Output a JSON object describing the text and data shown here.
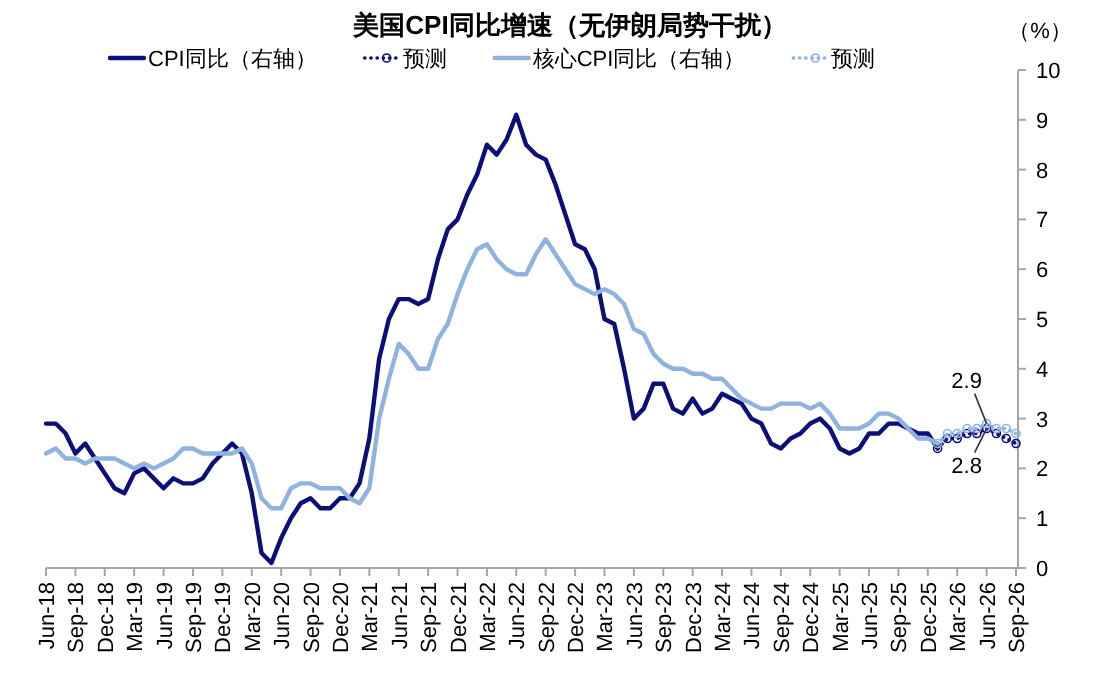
{
  "chart_data": {
    "type": "line",
    "title": "美国CPI同比增速（无伊朗局势干扰）",
    "ylabel": "（%）",
    "x": [
      "2018-06",
      "2018-07",
      "2018-08",
      "2018-09",
      "2018-10",
      "2018-11",
      "2018-12",
      "2019-01",
      "2019-02",
      "2019-03",
      "2019-04",
      "2019-05",
      "2019-06",
      "2019-07",
      "2019-08",
      "2019-09",
      "2019-10",
      "2019-11",
      "2019-12",
      "2020-01",
      "2020-02",
      "2020-03",
      "2020-04",
      "2020-05",
      "2020-06",
      "2020-07",
      "2020-08",
      "2020-09",
      "2020-10",
      "2020-11",
      "2020-12",
      "2021-01",
      "2021-02",
      "2021-03",
      "2021-04",
      "2021-05",
      "2021-06",
      "2021-07",
      "2021-08",
      "2021-09",
      "2021-10",
      "2021-11",
      "2021-12",
      "2022-01",
      "2022-02",
      "2022-03",
      "2022-04",
      "2022-05",
      "2022-06",
      "2022-07",
      "2022-08",
      "2022-09",
      "2022-10",
      "2022-11",
      "2022-12",
      "2023-01",
      "2023-02",
      "2023-03",
      "2023-04",
      "2023-05",
      "2023-06",
      "2023-07",
      "2023-08",
      "2023-09",
      "2023-10",
      "2023-11",
      "2023-12",
      "2024-01",
      "2024-02",
      "2024-03",
      "2024-04",
      "2024-05",
      "2024-06",
      "2024-07",
      "2024-08",
      "2024-09",
      "2024-10",
      "2024-11",
      "2024-12",
      "2025-01",
      "2025-02",
      "2025-03",
      "2025-04",
      "2025-05",
      "2025-06",
      "2025-07",
      "2025-08",
      "2025-09",
      "2025-10",
      "2025-11",
      "2025-12",
      "2026-01"
    ],
    "series": [
      {
        "name": "CPI同比（右轴）",
        "color": "#0b0f7a",
        "line_style": "solid",
        "marker": "none",
        "values": [
          2.9,
          2.9,
          2.7,
          2.3,
          2.5,
          2.2,
          1.9,
          1.6,
          1.5,
          1.9,
          2.0,
          1.8,
          1.6,
          1.8,
          1.7,
          1.7,
          1.8,
          2.1,
          2.3,
          2.5,
          2.3,
          1.5,
          0.3,
          0.1,
          0.6,
          1.0,
          1.3,
          1.4,
          1.2,
          1.2,
          1.4,
          1.4,
          1.7,
          2.6,
          4.2,
          5.0,
          5.4,
          5.4,
          5.3,
          5.4,
          6.2,
          6.8,
          7.0,
          7.5,
          7.9,
          8.5,
          8.3,
          8.6,
          9.1,
          8.5,
          8.3,
          8.2,
          7.7,
          7.1,
          6.5,
          6.4,
          6.0,
          5.0,
          4.9,
          4.0,
          3.0,
          3.2,
          3.7,
          3.7,
          3.2,
          3.1,
          3.4,
          3.1,
          3.2,
          3.5,
          3.4,
          3.3,
          3.0,
          2.9,
          2.5,
          2.4,
          2.6,
          2.7,
          2.9,
          3.0,
          2.8,
          2.4,
          2.3,
          2.4,
          2.7,
          2.7,
          2.9,
          2.9,
          2.8,
          2.7,
          2.7,
          2.4
        ]
      },
      {
        "name": "预测",
        "color": "#0b0f7a",
        "line_style": "dotted",
        "marker": "circle",
        "x": [
          "2026-01",
          "2026-02",
          "2026-03",
          "2026-04",
          "2026-05",
          "2026-06",
          "2026-07",
          "2026-08",
          "2026-09"
        ],
        "values": [
          2.4,
          2.6,
          2.6,
          2.7,
          2.7,
          2.8,
          2.7,
          2.6,
          2.5
        ]
      },
      {
        "name": "核心CPI同比（右轴）",
        "color": "#8fb3e0",
        "line_style": "solid",
        "marker": "none",
        "values": [
          2.3,
          2.4,
          2.2,
          2.2,
          2.1,
          2.2,
          2.2,
          2.2,
          2.1,
          2.0,
          2.1,
          2.0,
          2.1,
          2.2,
          2.4,
          2.4,
          2.3,
          2.3,
          2.3,
          2.3,
          2.4,
          2.1,
          1.4,
          1.2,
          1.2,
          1.6,
          1.7,
          1.7,
          1.6,
          1.6,
          1.6,
          1.4,
          1.3,
          1.6,
          3.0,
          3.8,
          4.5,
          4.3,
          4.0,
          4.0,
          4.6,
          4.9,
          5.5,
          6.0,
          6.4,
          6.5,
          6.2,
          6.0,
          5.9,
          5.9,
          6.3,
          6.6,
          6.3,
          6.0,
          5.7,
          5.6,
          5.5,
          5.6,
          5.5,
          5.3,
          4.8,
          4.7,
          4.3,
          4.1,
          4.0,
          4.0,
          3.9,
          3.9,
          3.8,
          3.8,
          3.6,
          3.4,
          3.3,
          3.2,
          3.2,
          3.3,
          3.3,
          3.3,
          3.2,
          3.3,
          3.1,
          2.8,
          2.8,
          2.8,
          2.9,
          3.1,
          3.1,
          3.0,
          2.8,
          2.6,
          2.6,
          2.5
        ]
      },
      {
        "name": "预测",
        "color": "#8fb3e0",
        "line_style": "dotted",
        "marker": "circle",
        "x": [
          "2026-01",
          "2026-02",
          "2026-03",
          "2026-04",
          "2026-05",
          "2026-06",
          "2026-07",
          "2026-08",
          "2026-09"
        ],
        "values": [
          2.5,
          2.7,
          2.7,
          2.8,
          2.8,
          2.9,
          2.8,
          2.8,
          2.7
        ]
      }
    ],
    "xlim": [
      "2018-06",
      "2026-09"
    ],
    "xticks": [
      {
        "value": "2018-06",
        "label": "Jun-18"
      },
      {
        "value": "2018-09",
        "label": "Sep-18"
      },
      {
        "value": "2018-12",
        "label": "Dec-18"
      },
      {
        "value": "2019-03",
        "label": "Mar-19"
      },
      {
        "value": "2019-06",
        "label": "Jun-19"
      },
      {
        "value": "2019-09",
        "label": "Sep-19"
      },
      {
        "value": "2019-12",
        "label": "Dec-19"
      },
      {
        "value": "2020-03",
        "label": "Mar-20"
      },
      {
        "value": "2020-06",
        "label": "Jun-20"
      },
      {
        "value": "2020-09",
        "label": "Sep-20"
      },
      {
        "value": "2020-12",
        "label": "Dec-20"
      },
      {
        "value": "2021-03",
        "label": "Mar-21"
      },
      {
        "value": "2021-06",
        "label": "Jun-21"
      },
      {
        "value": "2021-09",
        "label": "Sep-21"
      },
      {
        "value": "2021-12",
        "label": "Dec-21"
      },
      {
        "value": "2022-03",
        "label": "Mar-22"
      },
      {
        "value": "2022-06",
        "label": "Jun-22"
      },
      {
        "value": "2022-09",
        "label": "Sep-22"
      },
      {
        "value": "2022-12",
        "label": "Dec-22"
      },
      {
        "value": "2023-03",
        "label": "Mar-23"
      },
      {
        "value": "2023-06",
        "label": "Jun-23"
      },
      {
        "value": "2023-09",
        "label": "Sep-23"
      },
      {
        "value": "2023-12",
        "label": "Dec-23"
      },
      {
        "value": "2024-03",
        "label": "Mar-24"
      },
      {
        "value": "2024-06",
        "label": "Jun-24"
      },
      {
        "value": "2024-09",
        "label": "Sep-24"
      },
      {
        "value": "2024-12",
        "label": "Dec-24"
      },
      {
        "value": "2025-03",
        "label": "Mar-25"
      },
      {
        "value": "2025-06",
        "label": "Jun-25"
      },
      {
        "value": "2025-09",
        "label": "Sep-25"
      },
      {
        "value": "2025-12",
        "label": "Dec-25"
      },
      {
        "value": "2026-03",
        "label": "Mar-26"
      },
      {
        "value": "2026-06",
        "label": "Jun-26"
      },
      {
        "value": "2026-09",
        "label": "Sep-26"
      }
    ],
    "ylim": [
      0,
      10
    ],
    "yticks": [
      0,
      1,
      2,
      3,
      4,
      5,
      6,
      7,
      8,
      9,
      10
    ],
    "legend": "top",
    "grid": false,
    "annotations": [
      {
        "text": "2.9",
        "x": "2026-06",
        "y": 2.9
      },
      {
        "text": "2.8",
        "x": "2026-06",
        "y": 2.8
      }
    ]
  }
}
